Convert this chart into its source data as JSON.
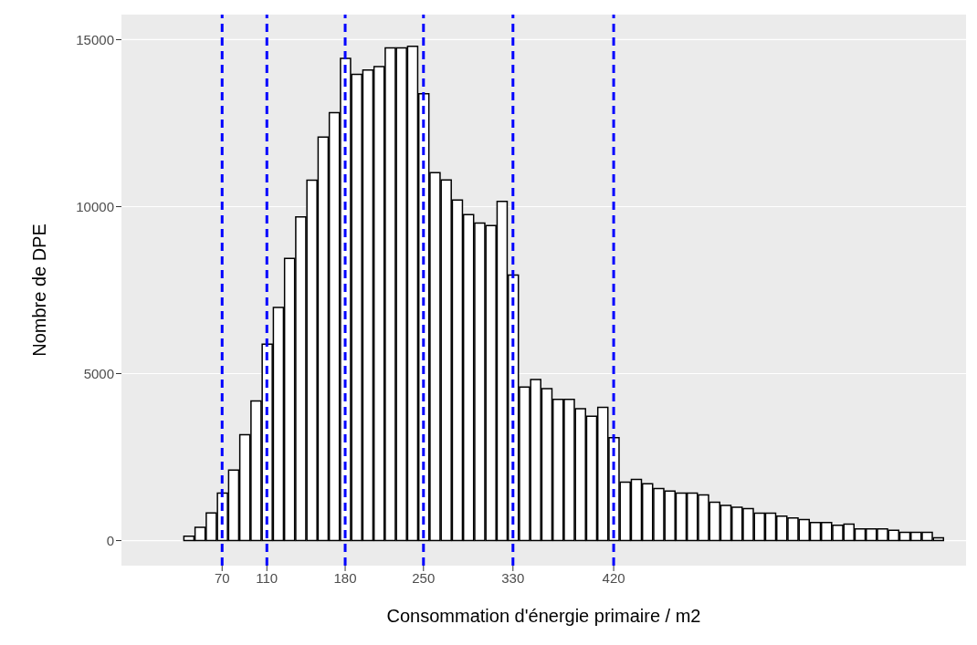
{
  "chart_data": {
    "type": "histogram",
    "xlabel": "Consommation d'énergie primaire / m2",
    "ylabel": "Nombre de DPE",
    "bins": [
      15,
      25,
      35,
      45,
      55,
      65,
      75,
      85,
      95,
      105,
      115,
      125,
      135,
      145,
      155,
      165,
      175,
      185,
      195,
      205,
      215,
      225,
      235,
      245,
      255,
      265,
      275,
      285,
      295,
      305,
      315,
      325,
      335,
      345,
      355,
      365,
      375,
      385,
      395,
      405,
      415,
      425,
      435,
      445,
      455,
      465,
      475,
      485,
      495,
      505,
      515,
      525,
      535,
      545,
      555,
      565,
      575,
      585,
      595,
      605,
      615,
      625,
      635,
      645,
      655,
      665,
      675,
      685,
      695,
      705,
      715
    ],
    "values": [
      0,
      0,
      130,
      400,
      830,
      1420,
      2110,
      3170,
      4180,
      5880,
      6980,
      8450,
      9690,
      10790,
      12080,
      12810,
      14440,
      13960,
      14090,
      14190,
      14750,
      14750,
      14800,
      13380,
      11020,
      10800,
      10200,
      9760,
      9510,
      9430,
      10160,
      7950,
      4600,
      4820,
      4550,
      4230,
      4230,
      3950,
      3720,
      3990,
      3080,
      1750,
      1830,
      1700,
      1560,
      1480,
      1420,
      1420,
      1370,
      1150,
      1050,
      1000,
      960,
      820,
      820,
      730,
      680,
      630,
      540,
      540,
      460,
      490,
      350,
      350,
      350,
      310,
      250,
      250,
      250,
      80
    ],
    "color": "#ffffff",
    "xlim": [
      -20,
      735
    ],
    "xticks": [
      70,
      110,
      180,
      250,
      330,
      420
    ],
    "ylim": [
      -750,
      15750
    ],
    "yticks": [
      0,
      5000,
      10000,
      15000
    ],
    "grid": "y",
    "ref_lines": [
      {
        "axis": "x",
        "value": 70,
        "color": "#0000ff",
        "line_style": "dashed"
      },
      {
        "axis": "x",
        "value": 110,
        "color": "#0000ff",
        "line_style": "dashed"
      },
      {
        "axis": "x",
        "value": 180,
        "color": "#0000ff",
        "line_style": "dashed"
      },
      {
        "axis": "x",
        "value": 250,
        "color": "#0000ff",
        "line_style": "dashed"
      },
      {
        "axis": "x",
        "value": 330,
        "color": "#0000ff",
        "line_style": "dashed"
      },
      {
        "axis": "x",
        "value": 420,
        "color": "#0000ff",
        "line_style": "dashed"
      }
    ]
  }
}
